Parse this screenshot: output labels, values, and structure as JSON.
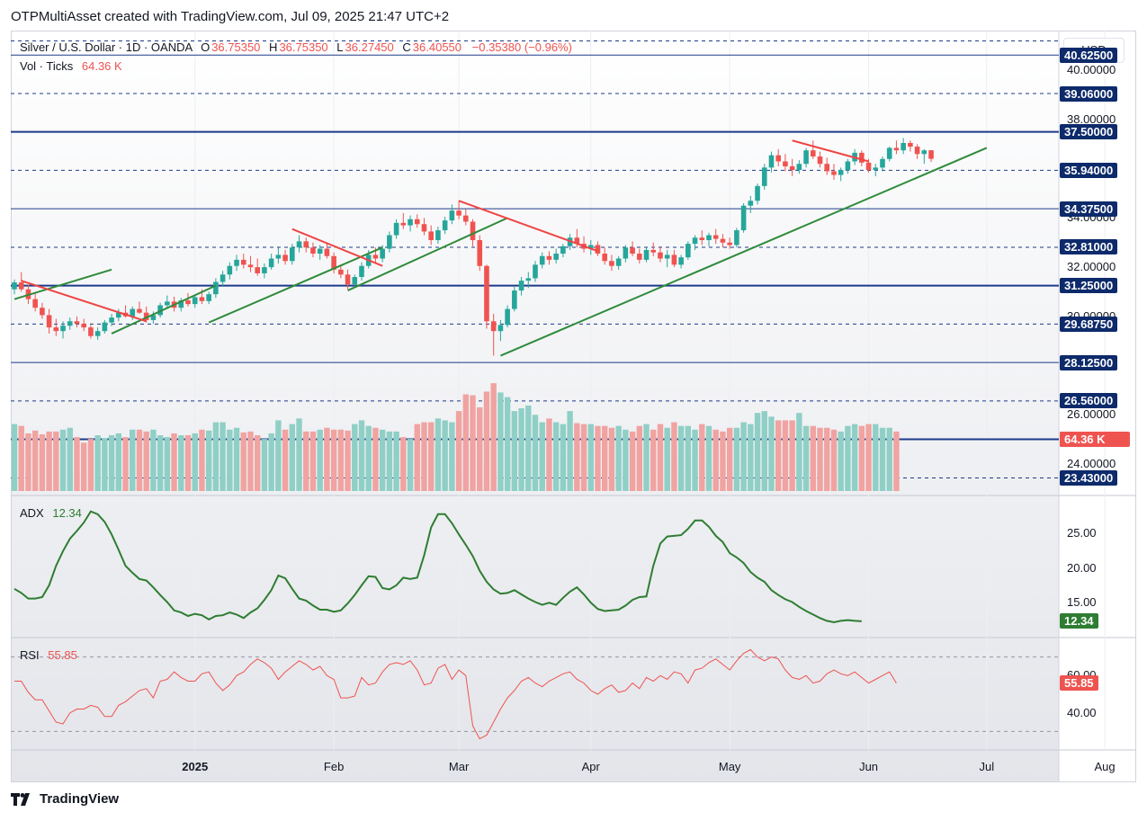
{
  "header": {
    "title": "OTPMultiAsset created with TradingView.com, Jul 09, 2025 21:47 UTC+2"
  },
  "footer": {
    "brand": "TradingView"
  },
  "currency_button": "USD",
  "legend": {
    "symbol": "Silver / U.S. Dollar · 1D · OANDA",
    "o_label": "O",
    "o_value": "36.75350",
    "h_label": "H",
    "h_value": "36.75350",
    "l_label": "L",
    "l_value": "36.27450",
    "c_label": "C",
    "c_value": "36.40550",
    "change": "−0.35380 (−0.96%)",
    "vol_label": "Vol · Ticks",
    "vol_value": "64.36 K",
    "adx_label": "ADX",
    "adx_value": "12.34",
    "rsi_label": "RSI",
    "rsi_value": "55.85"
  },
  "price_axis": {
    "ticks": [
      "40.00000",
      "38.00000",
      "34.00000",
      "32.00000",
      "30.00000",
      "26.00000",
      "24.00000"
    ],
    "level_tags": [
      "40.62500",
      "39.06000",
      "37.50000",
      "35.94000",
      "34.37500",
      "32.81000",
      "31.25000",
      "29.68750",
      "28.12500",
      "26.56000",
      "25.00000",
      "23.43000"
    ],
    "last_price_tag": "64.36 K",
    "adx_ticks": [
      "25.00",
      "20.00",
      "15.00"
    ],
    "adx_tag": "12.34",
    "rsi_ticks": [
      "60.00",
      "40.00"
    ],
    "rsi_tag": "55.85"
  },
  "time_axis": [
    "2025",
    "Feb",
    "Mar",
    "Apr",
    "May",
    "Jun",
    "Jul",
    "Aug"
  ],
  "colors": {
    "up": "#26a69a",
    "down": "#ef5350",
    "vol_up": "#8fcfc6",
    "vol_down": "#f0a3a1",
    "trend_up": "#2e8b3a",
    "trend_down": "#ef4444",
    "level_solid": "#1e3a8a",
    "level_dash": "#1e3a8a",
    "adx": "#2e7d32",
    "rsi": "#ef5350",
    "tag_bg": "#0d2a6b"
  },
  "chart_data": [
    {
      "type": "candlestick",
      "title": "Silver / U.S. Dollar · 1D · OANDA",
      "x_start": "2024-12-06",
      "x_labels": [
        "2025",
        "Feb",
        "Mar",
        "Apr",
        "May",
        "Jun",
        "Jul",
        "Aug"
      ],
      "ylim": [
        22.9,
        41.4
      ],
      "ohlc": [
        [
          31.1,
          31.5,
          30.9,
          31.38
        ],
        [
          31.38,
          31.8,
          31.0,
          31.1
        ],
        [
          31.1,
          31.3,
          30.5,
          30.7
        ],
        [
          30.7,
          30.95,
          30.2,
          30.35
        ],
        [
          30.35,
          30.55,
          29.9,
          30.05
        ],
        [
          30.05,
          30.3,
          29.3,
          29.55
        ],
        [
          29.55,
          29.9,
          29.2,
          29.4
        ],
        [
          29.4,
          29.8,
          29.1,
          29.62
        ],
        [
          29.62,
          29.95,
          29.45,
          29.8
        ],
        [
          29.8,
          30.0,
          29.55,
          29.7
        ],
        [
          29.7,
          29.9,
          29.4,
          29.55
        ],
        [
          29.55,
          29.65,
          29.1,
          29.2
        ],
        [
          29.2,
          29.55,
          29.05,
          29.4
        ],
        [
          29.4,
          29.85,
          29.3,
          29.75
        ],
        [
          29.75,
          30.1,
          29.6,
          29.95
        ],
        [
          29.95,
          30.3,
          29.8,
          30.15
        ],
        [
          30.15,
          30.45,
          29.95,
          30.0
        ],
        [
          30.0,
          30.4,
          29.85,
          30.3
        ],
        [
          30.3,
          30.6,
          30.1,
          30.15
        ],
        [
          30.15,
          30.4,
          29.75,
          29.85
        ],
        [
          29.85,
          30.2,
          29.7,
          30.05
        ],
        [
          30.05,
          30.55,
          29.95,
          30.45
        ],
        [
          30.45,
          30.85,
          30.3,
          30.6
        ],
        [
          30.6,
          30.8,
          30.2,
          30.35
        ],
        [
          30.35,
          30.75,
          30.2,
          30.65
        ],
        [
          30.65,
          30.95,
          30.4,
          30.5
        ],
        [
          30.5,
          30.85,
          30.35,
          30.78
        ],
        [
          30.78,
          31.1,
          30.5,
          30.62
        ],
        [
          30.62,
          31.0,
          30.5,
          30.9
        ],
        [
          30.9,
          31.55,
          30.75,
          31.4
        ],
        [
          31.4,
          31.85,
          31.2,
          31.7
        ],
        [
          31.7,
          32.2,
          31.5,
          32.05
        ],
        [
          32.05,
          32.5,
          31.85,
          32.3
        ],
        [
          32.3,
          32.55,
          31.95,
          32.1
        ],
        [
          32.1,
          32.45,
          31.8,
          32.0
        ],
        [
          32.0,
          32.35,
          31.65,
          31.75
        ],
        [
          31.75,
          32.15,
          31.55,
          32.0
        ],
        [
          32.0,
          32.55,
          31.9,
          32.35
        ],
        [
          32.35,
          32.8,
          32.15,
          32.5
        ],
        [
          32.5,
          32.7,
          32.1,
          32.25
        ],
        [
          32.25,
          32.95,
          32.1,
          32.8
        ],
        [
          32.8,
          33.3,
          32.6,
          33.05
        ],
        [
          33.05,
          33.2,
          32.6,
          32.8
        ],
        [
          32.8,
          33.0,
          32.4,
          32.55
        ],
        [
          32.55,
          32.9,
          32.3,
          32.75
        ],
        [
          32.75,
          32.95,
          32.35,
          32.45
        ],
        [
          32.45,
          32.6,
          31.75,
          31.9
        ],
        [
          31.9,
          32.1,
          31.55,
          31.7
        ],
        [
          31.7,
          31.9,
          31.1,
          31.3
        ],
        [
          31.3,
          31.7,
          31.15,
          31.6
        ],
        [
          31.6,
          32.2,
          31.45,
          32.05
        ],
        [
          32.05,
          32.7,
          31.95,
          32.5
        ],
        [
          32.5,
          32.8,
          32.2,
          32.35
        ],
        [
          32.35,
          32.9,
          32.2,
          32.75
        ],
        [
          32.75,
          33.45,
          32.6,
          33.3
        ],
        [
          33.3,
          33.95,
          33.15,
          33.8
        ],
        [
          33.8,
          34.2,
          33.55,
          33.7
        ],
        [
          33.7,
          34.1,
          33.45,
          33.95
        ],
        [
          33.95,
          34.15,
          33.6,
          33.75
        ],
        [
          33.75,
          34.0,
          33.3,
          33.45
        ],
        [
          33.45,
          33.7,
          32.9,
          33.1
        ],
        [
          33.1,
          33.65,
          32.95,
          33.5
        ],
        [
          33.5,
          34.05,
          33.35,
          33.9
        ],
        [
          33.9,
          34.55,
          33.75,
          34.3
        ],
        [
          34.3,
          34.7,
          33.95,
          34.1
        ],
        [
          34.1,
          34.35,
          33.7,
          33.85
        ],
        [
          33.85,
          33.95,
          32.85,
          33.1
        ],
        [
          33.1,
          33.3,
          31.85,
          32.05
        ],
        [
          32.05,
          32.1,
          29.5,
          29.8
        ],
        [
          29.8,
          30.1,
          28.4,
          29.4
        ],
        [
          29.4,
          29.85,
          29.0,
          29.65
        ],
        [
          29.65,
          30.45,
          29.55,
          30.3
        ],
        [
          30.3,
          31.2,
          30.2,
          31.05
        ],
        [
          31.05,
          31.6,
          30.85,
          31.45
        ],
        [
          31.45,
          31.8,
          31.15,
          31.55
        ],
        [
          31.55,
          32.25,
          31.4,
          32.1
        ],
        [
          32.1,
          32.6,
          31.95,
          32.45
        ],
        [
          32.45,
          32.65,
          32.1,
          32.3
        ],
        [
          32.3,
          32.75,
          32.15,
          32.55
        ],
        [
          32.55,
          32.95,
          32.4,
          32.85
        ],
        [
          32.85,
          33.35,
          32.7,
          33.2
        ],
        [
          33.2,
          33.55,
          32.8,
          32.95
        ],
        [
          32.95,
          33.25,
          32.6,
          32.75
        ],
        [
          32.75,
          33.1,
          32.5,
          32.9
        ],
        [
          32.9,
          33.05,
          32.45,
          32.55
        ],
        [
          32.55,
          32.8,
          32.1,
          32.25
        ],
        [
          32.25,
          32.5,
          31.85,
          32.05
        ],
        [
          32.05,
          32.45,
          31.9,
          32.35
        ],
        [
          32.35,
          32.9,
          32.2,
          32.8
        ],
        [
          32.8,
          33.05,
          32.45,
          32.55
        ],
        [
          32.55,
          32.75,
          32.15,
          32.3
        ],
        [
          32.3,
          32.8,
          32.2,
          32.7
        ],
        [
          32.7,
          33.0,
          32.45,
          32.6
        ],
        [
          32.6,
          32.85,
          32.2,
          32.35
        ],
        [
          32.35,
          32.7,
          32.0,
          32.5
        ],
        [
          32.5,
          32.7,
          32.0,
          32.1
        ],
        [
          32.1,
          32.5,
          31.95,
          32.4
        ],
        [
          32.4,
          33.05,
          32.3,
          32.95
        ],
        [
          32.95,
          33.3,
          32.7,
          33.2
        ],
        [
          33.2,
          33.5,
          32.9,
          33.1
        ],
        [
          33.1,
          33.4,
          32.85,
          33.3
        ],
        [
          33.3,
          33.55,
          32.95,
          33.15
        ],
        [
          33.15,
          33.35,
          32.8,
          33.0
        ],
        [
          33.0,
          33.2,
          32.75,
          32.9
        ],
        [
          32.9,
          33.6,
          32.8,
          33.5
        ],
        [
          33.5,
          34.6,
          33.4,
          34.5
        ],
        [
          34.5,
          34.9,
          34.2,
          34.7
        ],
        [
          34.7,
          35.4,
          34.55,
          35.3
        ],
        [
          35.3,
          36.2,
          35.15,
          36.05
        ],
        [
          36.05,
          36.7,
          35.85,
          36.55
        ],
        [
          36.55,
          36.8,
          36.1,
          36.3
        ],
        [
          36.3,
          36.6,
          35.9,
          36.1
        ],
        [
          36.1,
          36.4,
          35.7,
          35.95
        ],
        [
          35.95,
          36.35,
          35.8,
          36.2
        ],
        [
          36.2,
          36.85,
          36.05,
          36.75
        ],
        [
          36.75,
          37.15,
          36.4,
          36.5
        ],
        [
          36.5,
          36.7,
          36.05,
          36.2
        ],
        [
          36.2,
          36.45,
          35.75,
          35.9
        ],
        [
          35.9,
          36.2,
          35.55,
          35.75
        ],
        [
          35.75,
          36.05,
          35.5,
          35.95
        ],
        [
          35.95,
          36.4,
          35.8,
          36.3
        ],
        [
          36.3,
          36.8,
          36.15,
          36.65
        ],
        [
          36.65,
          36.75,
          36.1,
          36.25
        ],
        [
          36.25,
          36.4,
          35.85,
          35.95
        ],
        [
          35.95,
          36.2,
          35.7,
          36.05
        ],
        [
          36.05,
          36.5,
          35.9,
          36.4
        ],
        [
          36.4,
          36.9,
          36.3,
          36.85
        ],
        [
          36.85,
          37.15,
          36.6,
          36.75
        ],
        [
          36.75,
          37.25,
          36.6,
          37.05
        ],
        [
          37.05,
          37.15,
          36.7,
          36.9
        ],
        [
          36.9,
          37.0,
          36.4,
          36.6
        ],
        [
          36.6,
          36.8,
          36.2,
          36.75
        ],
        [
          36.75353,
          36.7535,
          36.2745,
          36.4055
        ]
      ]
    },
    {
      "type": "bar",
      "title": "Vol · Ticks",
      "unit": "K",
      "last_value": 64.36,
      "values": [
        72,
        70,
        62,
        65,
        61,
        64,
        64,
        66,
        68,
        58,
        52,
        56,
        60,
        57,
        60,
        62,
        58,
        66,
        66,
        64,
        66,
        60,
        58,
        62,
        60,
        60,
        62,
        66,
        65,
        74,
        74,
        66,
        68,
        63,
        64,
        60,
        56,
        62,
        76,
        66,
        72,
        78,
        64,
        64,
        66,
        68,
        66,
        66,
        65,
        72,
        76,
        70,
        68,
        66,
        64,
        64,
        58,
        56,
        72,
        74,
        74,
        78,
        76,
        74,
        86,
        104,
        103,
        90,
        107,
        116,
        106,
        101,
        86,
        89,
        92,
        82,
        74,
        78,
        74,
        72,
        86,
        73,
        72,
        72,
        70,
        70,
        68,
        70,
        66,
        64,
        70,
        72,
        66,
        72,
        68,
        74,
        70,
        70,
        66,
        72,
        70,
        66,
        64,
        68,
        68,
        74,
        72,
        84,
        86,
        80,
        76,
        76,
        76,
        84,
        70,
        70,
        68,
        68,
        66,
        64,
        70,
        72,
        70,
        72,
        72,
        68,
        68,
        64
      ]
    },
    {
      "type": "line",
      "title": "ADX",
      "last_value": 12.34,
      "values": [
        17.0,
        16.4,
        15.6,
        15.6,
        15.8,
        17.5,
        20.3,
        22.4,
        24.2,
        25.3,
        26.5,
        28.1,
        27.7,
        26.6,
        24.8,
        22.6,
        20.3,
        19.3,
        18.4,
        18.2,
        17.2,
        16.1,
        15.1,
        13.9,
        13.6,
        13.1,
        13.4,
        13.2,
        12.6,
        13.1,
        13.2,
        13.6,
        13.3,
        12.8,
        13.6,
        14.2,
        15.4,
        16.8,
        18.9,
        18.5,
        17.0,
        15.6,
        15.3,
        14.6,
        14.0,
        14.0,
        13.7,
        13.9,
        14.9,
        16.1,
        17.5,
        18.8,
        18.7,
        17.1,
        16.9,
        17.5,
        18.6,
        18.4,
        18.6,
        21.8,
        25.8,
        27.7,
        27.7,
        26.4,
        24.8,
        23.3,
        21.7,
        19.6,
        18.0,
        16.9,
        16.3,
        16.4,
        16.8,
        16.2,
        15.6,
        15.1,
        14.7,
        15.0,
        14.7,
        15.7,
        16.6,
        17.2,
        16.2,
        15.0,
        14.1,
        13.8,
        13.9,
        14.0,
        14.6,
        15.4,
        15.8,
        15.9,
        20.3,
        23.5,
        24.5,
        24.6,
        24.7,
        25.6,
        26.8,
        26.8,
        25.9,
        24.6,
        23.7,
        22.1,
        21.5,
        20.7,
        19.4,
        18.6,
        18.0,
        16.8,
        16.1,
        15.5,
        15.1,
        14.4,
        13.8,
        13.3,
        12.8,
        12.4,
        12.2,
        12.4,
        12.5,
        12.4,
        12.34
      ]
    },
    {
      "type": "line",
      "title": "RSI",
      "last_value": 55.85,
      "values": [
        57,
        57,
        51,
        47,
        47,
        41,
        35,
        34,
        40,
        42,
        42,
        44,
        43,
        38,
        38,
        44,
        46,
        49,
        52,
        53,
        48,
        57,
        58,
        62,
        59,
        57,
        57,
        61,
        62,
        56,
        52,
        55,
        60,
        62,
        66,
        69,
        67,
        64,
        58,
        62,
        65,
        68,
        66,
        63,
        65,
        60,
        58,
        48,
        48,
        49,
        59,
        55,
        56,
        62,
        66,
        67,
        66,
        68,
        63,
        55,
        56,
        64,
        66,
        58,
        63,
        60,
        33,
        26,
        28,
        35,
        42,
        48,
        52,
        57,
        59,
        56,
        54,
        57,
        59,
        61,
        62,
        58,
        56,
        52,
        50,
        53,
        55,
        51,
        52,
        56,
        53,
        59,
        57,
        60,
        58,
        62,
        61,
        56,
        63,
        64,
        67,
        69,
        66,
        63,
        68,
        72,
        74,
        70,
        68,
        70,
        69,
        63,
        59,
        58,
        60,
        56,
        57,
        61,
        63,
        61,
        60,
        62,
        59,
        56,
        58,
        60,
        62,
        56
      ]
    }
  ]
}
